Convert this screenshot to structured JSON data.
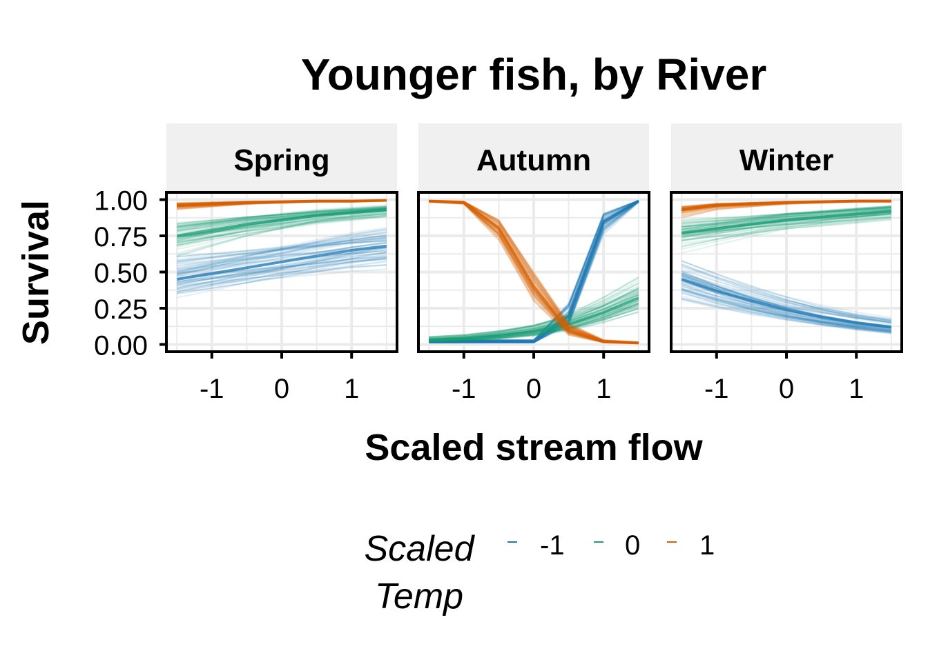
{
  "chart_data": {
    "type": "line",
    "title": "Younger fish, by River",
    "xlabel": "Scaled stream flow",
    "ylabel": "Survival",
    "xlim": [
      -1.65,
      1.65
    ],
    "ylim": [
      -0.05,
      1.05
    ],
    "x_ticks": [
      "-1",
      "0",
      "1"
    ],
    "y_ticks": [
      "0.00",
      "0.25",
      "0.50",
      "0.75",
      "1.00"
    ],
    "grid": true,
    "legend": {
      "position": "bottom",
      "title_lines": [
        "Scaled",
        "Temp"
      ],
      "entries": [
        {
          "label": "-1",
          "color": "#1F78B4"
        },
        {
          "label": "0",
          "color": "#1B9E77"
        },
        {
          "label": "1",
          "color": "#D95F02"
        }
      ]
    },
    "colors": {
      "-1": "#1F78B4",
      "0": "#1B9E77",
      "1": "#D95F02"
    },
    "x": [
      -1.5,
      -1.0,
      -0.5,
      0.0,
      0.5,
      1.0,
      1.5
    ],
    "panels": [
      {
        "season": "Spring",
        "series": [
          {
            "temp": "-1",
            "values": [
              0.45,
              0.49,
              0.53,
              0.57,
              0.61,
              0.65,
              0.68
            ]
          },
          {
            "temp": "0",
            "values": [
              0.75,
              0.79,
              0.83,
              0.86,
              0.89,
              0.91,
              0.93
            ]
          },
          {
            "temp": "1",
            "values": [
              0.96,
              0.97,
              0.98,
              0.985,
              0.99,
              0.99,
              0.995
            ]
          }
        ]
      },
      {
        "season": "Autumn",
        "series": [
          {
            "temp": "-1",
            "values": [
              0.02,
              0.02,
              0.02,
              0.02,
              0.2,
              0.85,
              0.99
            ]
          },
          {
            "temp": "0",
            "values": [
              0.03,
              0.04,
              0.06,
              0.09,
              0.14,
              0.22,
              0.32
            ]
          },
          {
            "temp": "1",
            "values": [
              0.99,
              0.98,
              0.8,
              0.4,
              0.1,
              0.02,
              0.01
            ]
          }
        ]
      },
      {
        "season": "Winter",
        "series": [
          {
            "temp": "-1",
            "values": [
              0.45,
              0.37,
              0.3,
              0.24,
              0.19,
              0.15,
              0.12
            ]
          },
          {
            "temp": "0",
            "values": [
              0.77,
              0.8,
              0.83,
              0.86,
              0.88,
              0.9,
              0.92
            ]
          },
          {
            "temp": "1",
            "values": [
              0.93,
              0.96,
              0.97,
              0.98,
              0.985,
              0.99,
              0.99
            ]
          }
        ]
      }
    ]
  }
}
